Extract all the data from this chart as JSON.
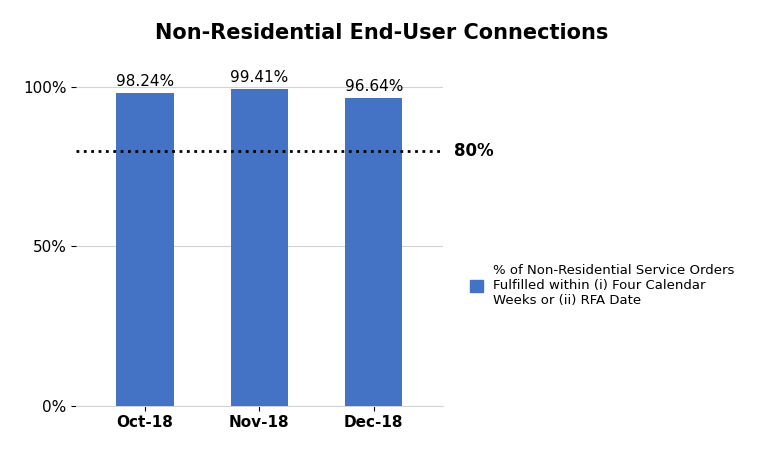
{
  "title": "Non-Residential End-User Connections",
  "categories": [
    "Oct-18",
    "Nov-18",
    "Dec-18"
  ],
  "values": [
    0.9824,
    0.9941,
    0.9664
  ],
  "bar_color": "#4472C4",
  "value_labels": [
    "98.24%",
    "99.41%",
    "96.64%"
  ],
  "threshold_value": 0.8,
  "threshold_label": "80%",
  "yticks": [
    0.0,
    0.5,
    1.0
  ],
  "ytick_labels": [
    "0%",
    "50%",
    "100%"
  ],
  "ylim": [
    0,
    1.1
  ],
  "legend_text": "% of Non-Residential Service Orders\nFulfilled within (i) Four Calendar\nWeeks or (ii) RFA Date",
  "background_color": "#ffffff",
  "title_fontsize": 15,
  "label_fontsize": 11,
  "tick_fontsize": 11,
  "bar_width": 0.5,
  "grid_color": "#D3D3D3",
  "threshold_line_color": "black",
  "threshold_label_fontsize": 12
}
